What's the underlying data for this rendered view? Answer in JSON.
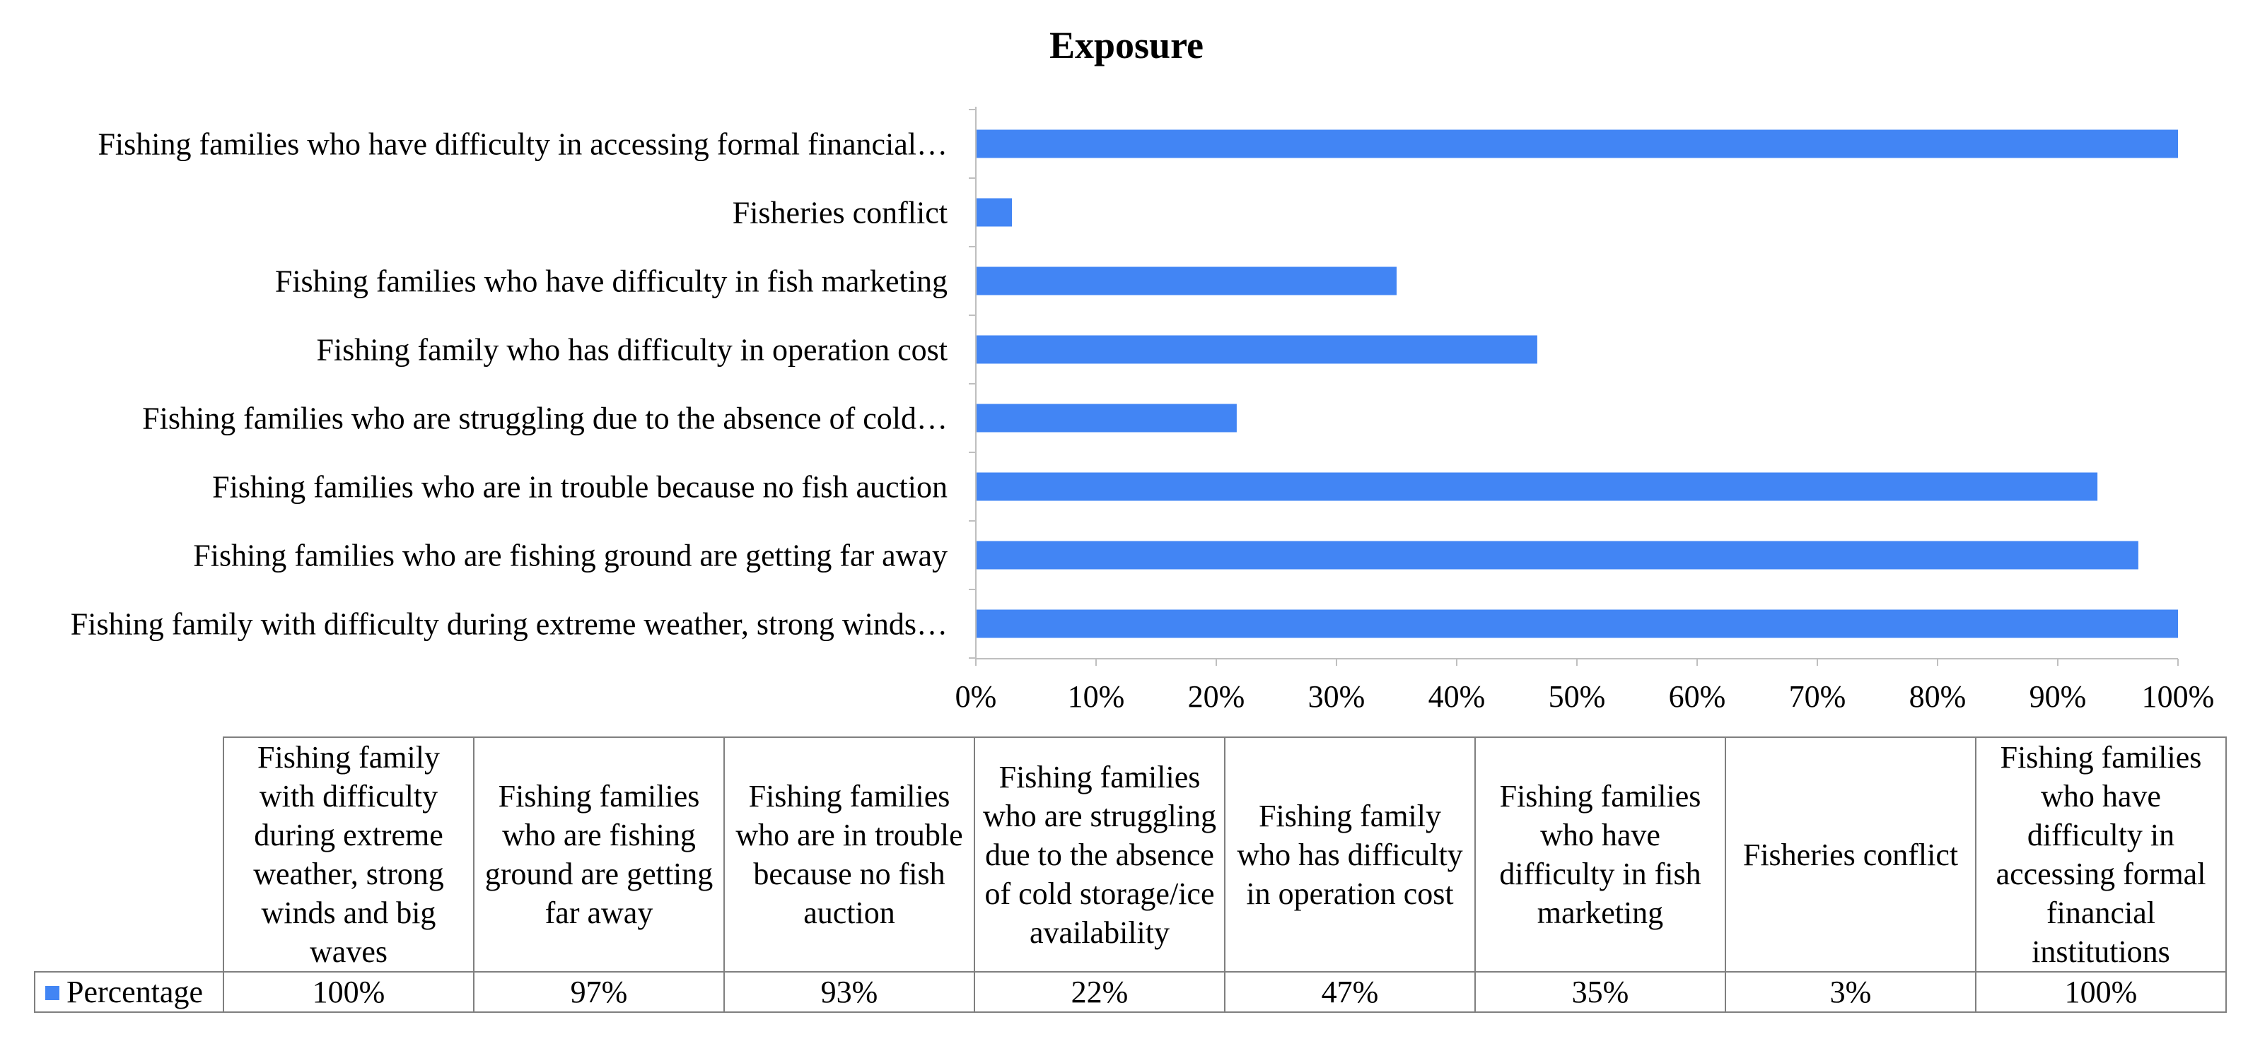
{
  "chart_data": {
    "type": "bar",
    "orientation": "horizontal",
    "title": "Exposure",
    "categories": [
      "Fishing family with difficulty during extreme weather, strong winds and big waves",
      "Fishing families who are fishing ground are getting far away",
      "Fishing families who are in trouble because no fish auction",
      "Fishing families who are struggling due to the absence of cold storage/ice availability",
      "Fishing family who has difficulty in operation cost",
      "Fishing families who have difficulty in fish marketing",
      "Fisheries conflict",
      "Fishing families who have difficulty in accessing formal financial institutions"
    ],
    "axis_labels": [
      "Fishing family with difficulty during extreme weather, strong winds…",
      "Fishing families who are fishing ground are getting far away",
      "Fishing families who are in trouble because no fish auction",
      "Fishing families who are struggling due to the absence of cold…",
      "Fishing family who has difficulty in operation cost",
      "Fishing families who have difficulty in fish marketing",
      "Fisheries conflict",
      "Fishing families who have difficulty in accessing formal financial…"
    ],
    "series": [
      {
        "name": "Percentage",
        "values": [
          100,
          96.7,
          93.3,
          21.7,
          46.7,
          35,
          3,
          100
        ],
        "value_labels": [
          "100%",
          "97%",
          "93%",
          "22%",
          "47%",
          "35%",
          "3%",
          "100%"
        ]
      }
    ],
    "xlim": [
      0,
      100
    ],
    "xticks": [
      "0%",
      "10%",
      "20%",
      "30%",
      "40%",
      "50%",
      "60%",
      "70%",
      "80%",
      "90%",
      "100%"
    ],
    "grid": false,
    "legend": "data-table-below",
    "bar_color": "#4285f4"
  }
}
